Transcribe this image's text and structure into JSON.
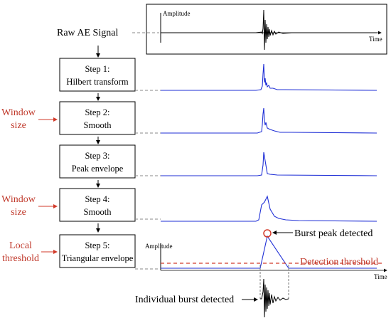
{
  "raw_signal": {
    "label": "Raw AE Signal",
    "y_axis": "Amplitude",
    "x_axis": "Time"
  },
  "steps": [
    {
      "title": "Step 1:",
      "name": "Hilbert transform"
    },
    {
      "title": "Step 2:",
      "name": "Smooth"
    },
    {
      "title": "Step 3:",
      "name": "Peak envelope"
    },
    {
      "title": "Step 4:",
      "name": "Smooth"
    },
    {
      "title": "Step 5:",
      "name": "Triangular envelope"
    }
  ],
  "side_params": {
    "window_size_1": [
      "Window",
      "size"
    ],
    "window_size_2": [
      "Window",
      "size"
    ],
    "local_threshold": [
      "Local",
      "threshold"
    ]
  },
  "final_plot": {
    "y_axis": "Amplitude",
    "x_axis": "Time",
    "burst_peak_label": "Burst peak detected",
    "threshold_label": "Detection threshold",
    "burst_label": "Individual burst detected"
  },
  "colors": {
    "signal_blue": "#1f2fd6",
    "threshold_red": "#d23a2a",
    "label_red": "#c0392b"
  }
}
